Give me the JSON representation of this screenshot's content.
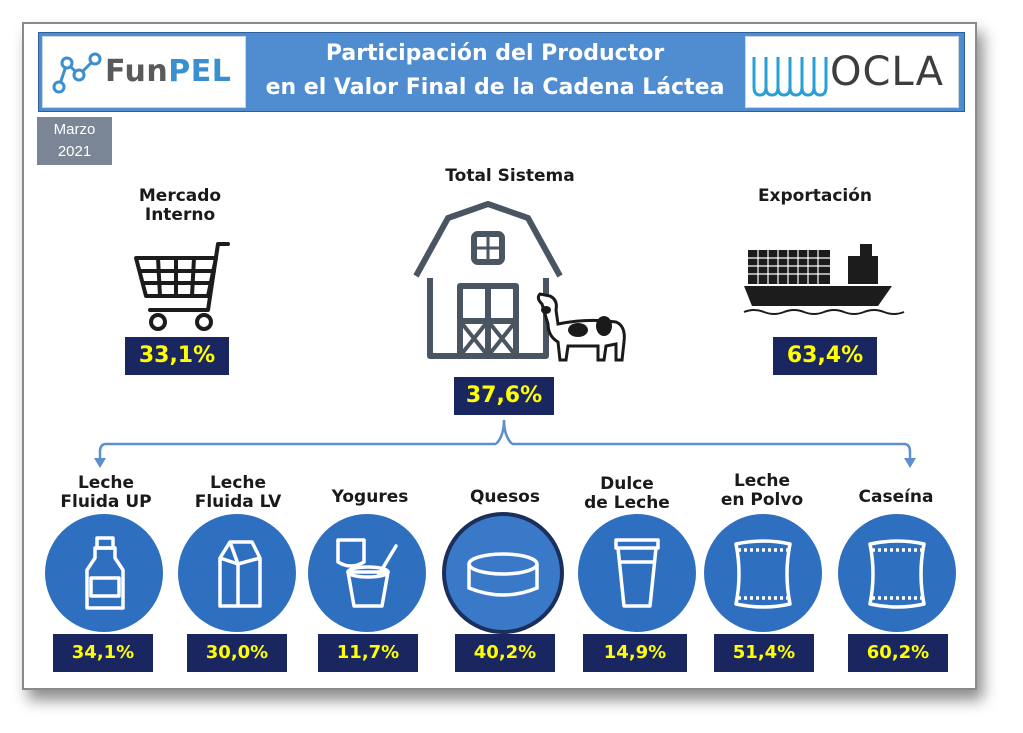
{
  "header": {
    "title_line1": "Participación del Productor",
    "title_line2": "en el Valor Final de la Cadena Láctea",
    "logo_left": {
      "part1": "Fun",
      "part2": "PEL"
    },
    "logo_right": "OCLA"
  },
  "date": {
    "month": "Marzo",
    "year": "2021"
  },
  "main": [
    {
      "label_line1": "Mercado",
      "label_line2": "Interno",
      "value": "33,1%",
      "icon": "shopping-cart-icon"
    },
    {
      "label_line1": "Total Sistema",
      "label_line2": "",
      "value": "37,6%",
      "icon": "barn-cow-icon"
    },
    {
      "label_line1": "Exportación",
      "label_line2": "",
      "value": "63,4%",
      "icon": "cargo-ship-icon"
    }
  ],
  "products": [
    {
      "label_line1": "Leche",
      "label_line2": "Fluida UP",
      "value": "34,1%",
      "icon": "milk-bottle-icon"
    },
    {
      "label_line1": "Leche",
      "label_line2": "Fluida LV",
      "value": "30,0%",
      "icon": "milk-carton-icon"
    },
    {
      "label_line1": "Yogures",
      "label_line2": "",
      "value": "11,7%",
      "icon": "yogurt-icon"
    },
    {
      "label_line1": "Quesos",
      "label_line2": "",
      "value": "40,2%",
      "icon": "cheese-wheel-icon"
    },
    {
      "label_line1": "Dulce",
      "label_line2": "de Leche",
      "value": "14,9%",
      "icon": "cup-icon"
    },
    {
      "label_line1": "Leche",
      "label_line2": "en Polvo",
      "value": "51,4%",
      "icon": "powder-bag-icon"
    },
    {
      "label_line1": "Caseína",
      "label_line2": "",
      "value": "60,2%",
      "icon": "powder-bag-icon"
    }
  ],
  "colors": {
    "header_bg": "#4f8cd0",
    "value_bg": "#1a2660",
    "value_text": "#ffff00",
    "circle_bg": "#2f6fc0",
    "arrow": "#5b8fd0"
  }
}
